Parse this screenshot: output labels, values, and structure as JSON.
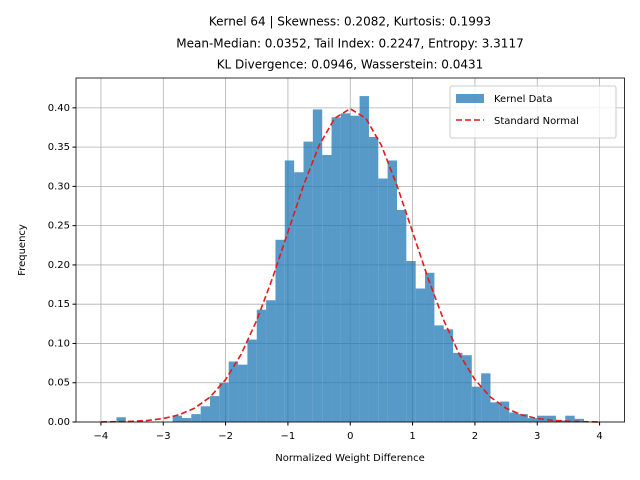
{
  "chart_data": {
    "type": "histogram",
    "title_lines": [
      "Kernel 64 | Skewness: 0.2082, Kurtosis: 0.1993",
      "Mean-Median: 0.0352, Tail Index: 0.2247, Entropy: 3.3117",
      "KL Divergence: 0.0946, Wasserstein: 0.0431"
    ],
    "x_label": "Normalized Weight Difference",
    "y_label": "Frequency",
    "bins": [
      -3.75,
      -3.6,
      -3.45,
      -3.3,
      -3.15,
      -3.0,
      -2.85,
      -2.7,
      -2.55,
      -2.4,
      -2.25,
      -2.1,
      -1.95,
      -1.8,
      -1.65,
      -1.5,
      -1.35,
      -1.2,
      -1.05,
      -0.9,
      -0.75,
      -0.6,
      -0.45,
      -0.3,
      -0.15,
      0,
      0.15,
      0.3,
      0.45,
      0.6,
      0.75,
      0.9,
      1.05,
      1.2,
      1.35,
      1.5,
      1.65,
      1.8,
      1.95,
      2.1,
      2.25,
      2.4,
      2.55,
      2.7,
      2.85,
      3.0,
      3.15,
      3.3,
      3.45,
      3.6,
      3.75
    ],
    "series": [
      {
        "name": "Kernel Data",
        "color": "#1f77b4",
        "values": [
          0.006,
          0,
          0,
          0,
          0,
          0,
          0.008,
          0.005,
          0.01,
          0.02,
          0.033,
          0.05,
          0.077,
          0.073,
          0.105,
          0.143,
          0.155,
          0.232,
          0.333,
          0.318,
          0.357,
          0.398,
          0.34,
          0.388,
          0.393,
          0.39,
          0.415,
          0.363,
          0.31,
          0.333,
          0.27,
          0.205,
          0.17,
          0.19,
          0.123,
          0.118,
          0.088,
          0.085,
          0.045,
          0.062,
          0.025,
          0.026,
          0.012,
          0.01,
          0.005,
          0.008,
          0.008,
          0.002,
          0.008,
          0.004
        ]
      }
    ],
    "lines": [
      {
        "name": "Standard Normal",
        "color": "#e41a1c",
        "style": "dashed",
        "x": [
          -4,
          -3.75,
          -3.5,
          -3.25,
          -3,
          -2.75,
          -2.5,
          -2.25,
          -2,
          -1.75,
          -1.5,
          -1.25,
          -1,
          -0.75,
          -0.5,
          -0.25,
          0,
          0.25,
          0.5,
          0.75,
          1,
          1.25,
          1.5,
          1.75,
          2,
          2.25,
          2.5,
          2.75,
          3,
          3.25,
          3.5,
          3.75,
          4
        ],
        "values": [
          0.0001,
          0.0004,
          0.0009,
          0.002,
          0.0044,
          0.0091,
          0.0175,
          0.0317,
          0.054,
          0.0863,
          0.1295,
          0.1826,
          0.242,
          0.3011,
          0.3521,
          0.3867,
          0.3989,
          0.3867,
          0.3521,
          0.3011,
          0.242,
          0.1826,
          0.1295,
          0.0863,
          0.054,
          0.0317,
          0.0175,
          0.0091,
          0.0044,
          0.002,
          0.0009,
          0.0004,
          0.0001
        ]
      }
    ],
    "xlim": [
      -4.4,
      4.4
    ],
    "ylim": [
      0,
      0.438
    ],
    "xticks": [
      {
        "value": -4,
        "label": "−4"
      },
      {
        "value": -3,
        "label": "−3"
      },
      {
        "value": -2,
        "label": "−2"
      },
      {
        "value": -1,
        "label": "−1"
      },
      0,
      1,
      2,
      3,
      4
    ],
    "yticks": [
      {
        "value": 0,
        "label": "0.00"
      },
      {
        "value": 0.05,
        "label": "0.05"
      },
      {
        "value": 0.1,
        "label": "0.10"
      },
      {
        "value": 0.15,
        "label": "0.15"
      },
      {
        "value": 0.2,
        "label": "0.20"
      },
      {
        "value": 0.25,
        "label": "0.25"
      },
      {
        "value": 0.3,
        "label": "0.30"
      },
      {
        "value": 0.35,
        "label": "0.35"
      },
      {
        "value": 0.4,
        "label": "0.40"
      }
    ],
    "grid": true,
    "legend": "upper right"
  }
}
